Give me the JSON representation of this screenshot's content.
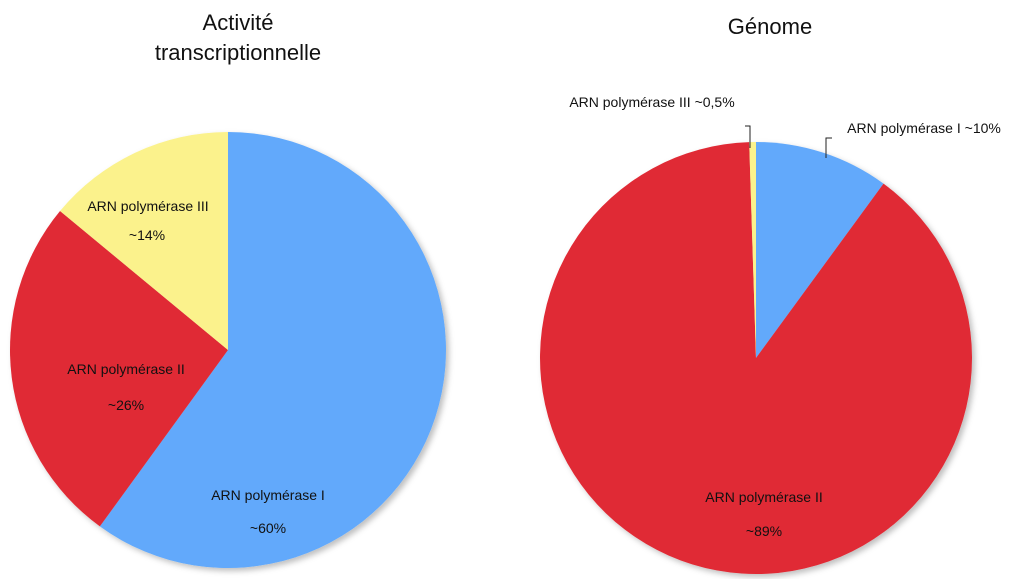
{
  "chart_data": [
    {
      "type": "pie",
      "title_line1": "Activité",
      "title_line2": "transcriptionnelle",
      "slices": [
        {
          "label": "ARN polymérase I",
          "value_label": "~60%",
          "value": 60,
          "color": "#62a9fb"
        },
        {
          "label": "ARN polymérase II",
          "value_label": "~26%",
          "value": 26,
          "color": "#e02b36"
        },
        {
          "label": "ARN polymérase III",
          "value_label": "~14%",
          "value": 14,
          "color": "#fbf28c"
        }
      ]
    },
    {
      "type": "pie",
      "title": "Génome",
      "slices": [
        {
          "label": "ARN polymérase I ~10%",
          "value": 10,
          "color": "#62a9fb"
        },
        {
          "label": "ARN polymérase II",
          "value_label": "~89%",
          "value": 89,
          "color": "#e02b36"
        },
        {
          "label": "ARN polymérase III ~0,5%",
          "value": 0.5,
          "color": "#fbf28c"
        }
      ]
    }
  ]
}
